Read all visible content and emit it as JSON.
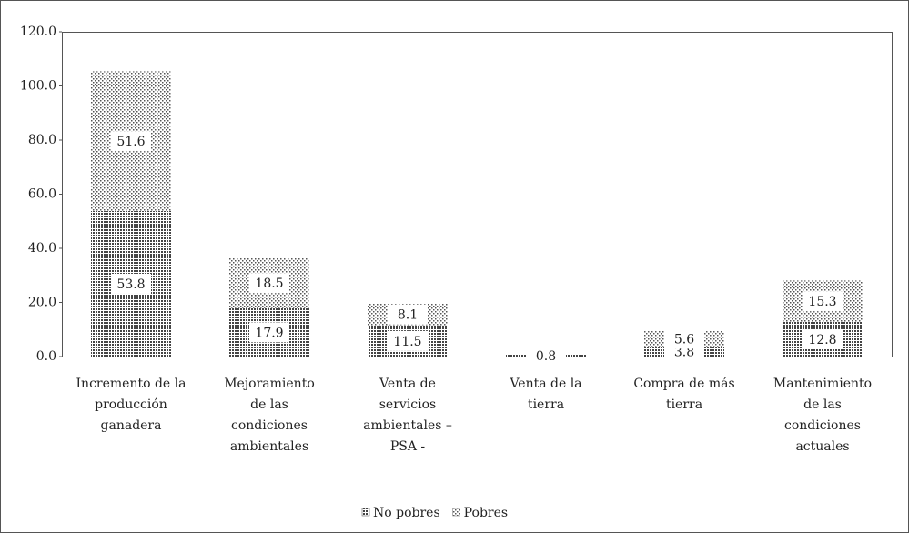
{
  "chart_data": {
    "type": "stacked_bar",
    "categories": [
      "Incremento de la\nproducción\nganadera",
      "Mejoramiento\nde las\ncondiciones\nambientales",
      "Venta de\nservicios\nambientales –\nPSA -",
      "Venta de la\ntierra",
      "Compra de más\ntierra",
      "Mantenimiento\nde las\ncondiciones\nactuales"
    ],
    "series": [
      {
        "name": "No pobres",
        "color": "#444444",
        "values": [
          53.8,
          17.9,
          11.5,
          0.8,
          3.8,
          12.8
        ]
      },
      {
        "name": "Pobres",
        "color": "#666666",
        "values": [
          51.6,
          18.5,
          8.1,
          null,
          5.6,
          15.3
        ]
      }
    ],
    "ylim": [
      0,
      120
    ],
    "yticks": [
      {
        "value": 0,
        "label": "0.0"
      },
      {
        "value": 20,
        "label": "20.0"
      },
      {
        "value": 40,
        "label": "40.0"
      },
      {
        "value": 60,
        "label": "60.0"
      },
      {
        "value": 80,
        "label": "80.0"
      },
      {
        "value": 100,
        "label": "100.0"
      },
      {
        "value": 120,
        "label": "120.0"
      }
    ],
    "legend": "bottom"
  }
}
